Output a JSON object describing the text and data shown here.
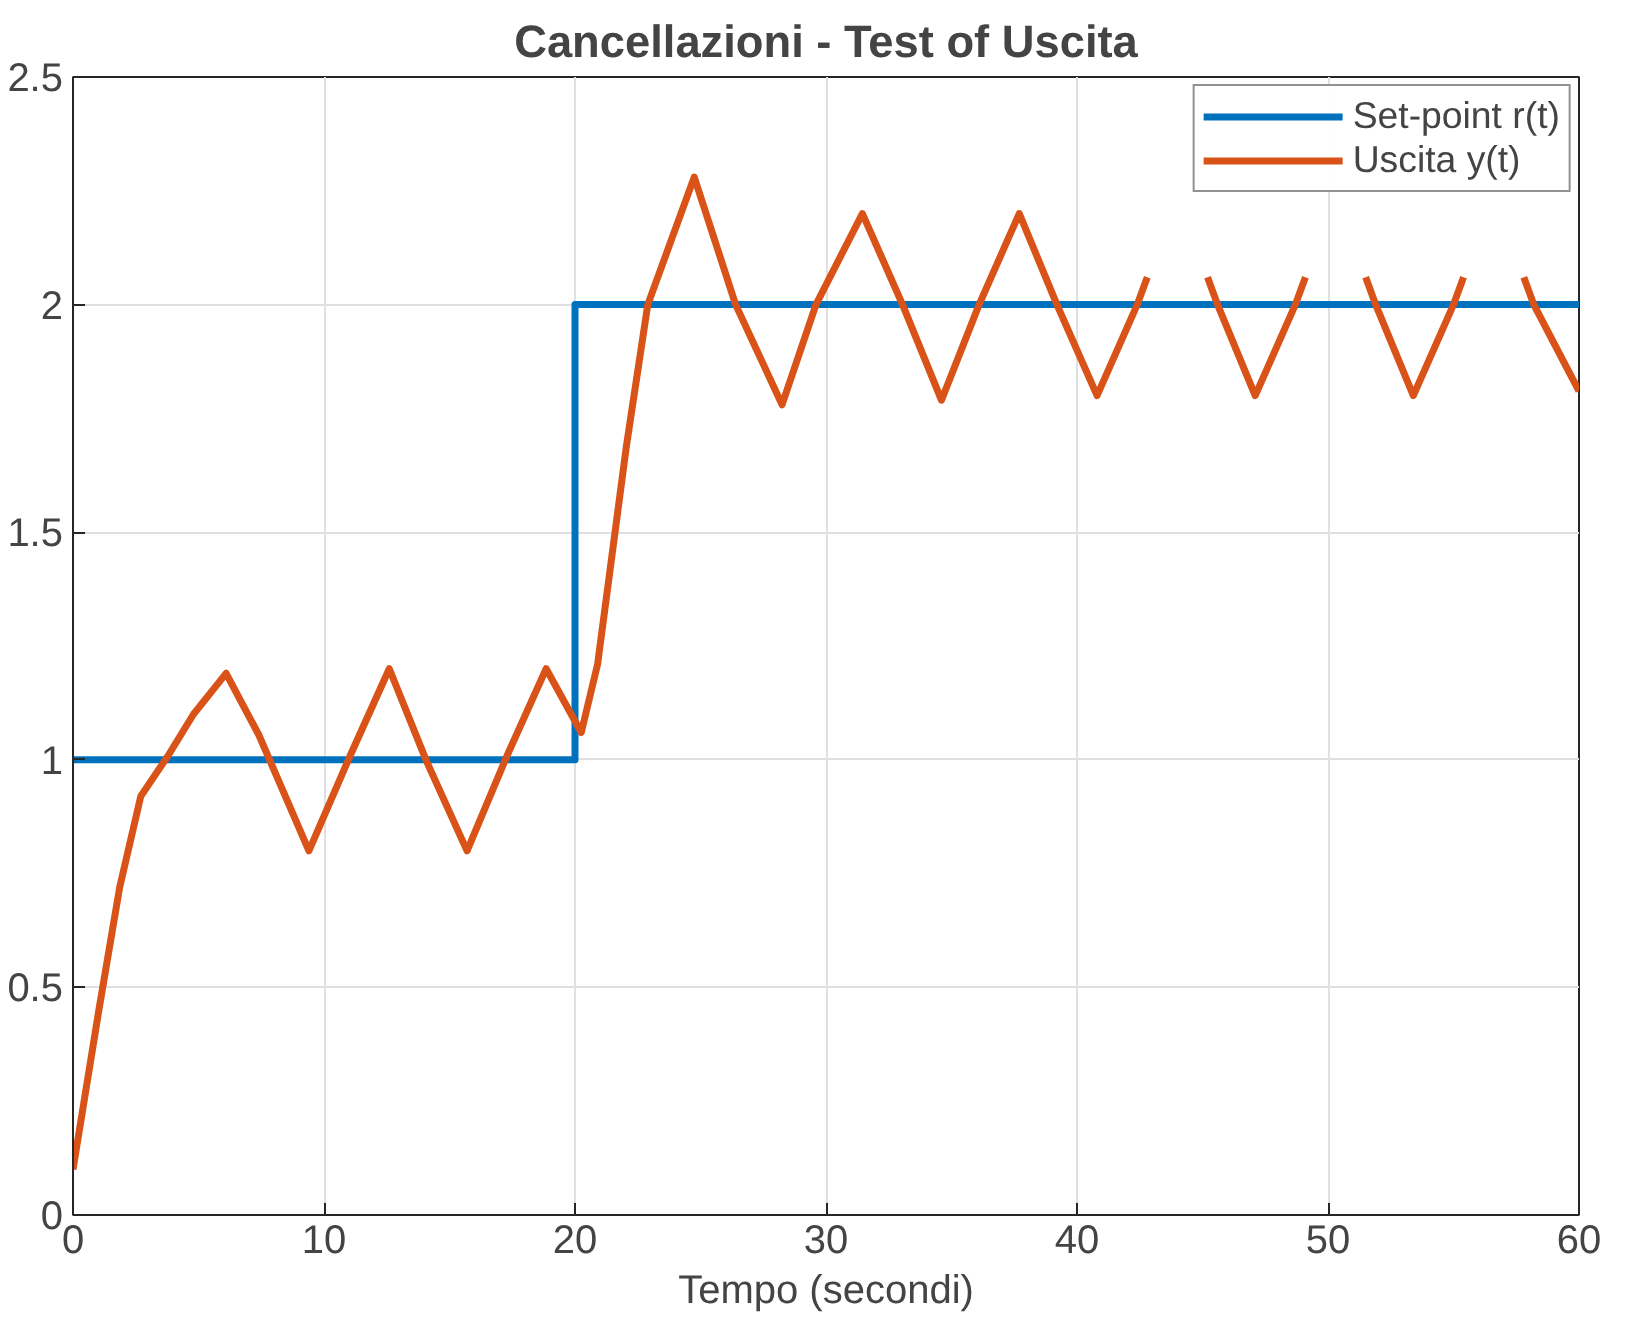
{
  "chart_data": {
    "type": "line",
    "title": "Cancellazioni - Test of Uscita",
    "xlabel": "Tempo (secondi)",
    "xlim": [
      0,
      60
    ],
    "ylim": [
      0,
      2.5
    ],
    "xticks": [
      0,
      10,
      20,
      30,
      40,
      50,
      60
    ],
    "yticks": [
      0,
      0.5,
      1,
      1.5,
      2,
      2.5
    ],
    "grid": true,
    "legend": "top right",
    "series": [
      {
        "name": "Set-point r(t)",
        "type": "step",
        "color": "#0072bd",
        "x": [
          0,
          20,
          60
        ],
        "values": [
          1,
          2,
          2
        ]
      },
      {
        "name": "Uscita y(t)",
        "color": "#d95319",
        "x": [
          0,
          1.03,
          1.86,
          2.7,
          3.8,
          4.8,
          6.1,
          7.4,
          9.4,
          11.05,
          12.6,
          14.1,
          15.7,
          17.3,
          18.85,
          20.25,
          20.9,
          22.05,
          22.9,
          24.75,
          26.4,
          28.25,
          29.6,
          31.45,
          33.05,
          34.6,
          36.1,
          37.7,
          39.2,
          40.8,
          42.4,
          42.8,
          44.0,
          45.2,
          45.6,
          47.1,
          48.7,
          49.1,
          50.3,
          51.5,
          51.9,
          53.4,
          55.0,
          55.4,
          56.6,
          57.8,
          58.2,
          60
        ],
        "values": [
          0.1,
          0.45,
          0.72,
          0.92,
          1.01,
          1.1,
          1.19,
          1.055,
          0.8,
          1.01,
          1.2,
          0.995,
          0.8,
          1.01,
          1.2,
          1.06,
          1.21,
          1.69,
          2.0,
          2.28,
          2.0,
          1.78,
          2.0,
          2.2,
          2.0,
          1.79,
          2.0,
          2.2,
          2.0,
          1.8,
          2.0,
          2.06,
          null,
          2.06,
          2.0,
          1.8,
          2.0,
          2.06,
          null,
          2.06,
          2.0,
          1.8,
          2.0,
          2.06,
          null,
          2.06,
          2.0,
          1.81
        ]
      }
    ]
  }
}
